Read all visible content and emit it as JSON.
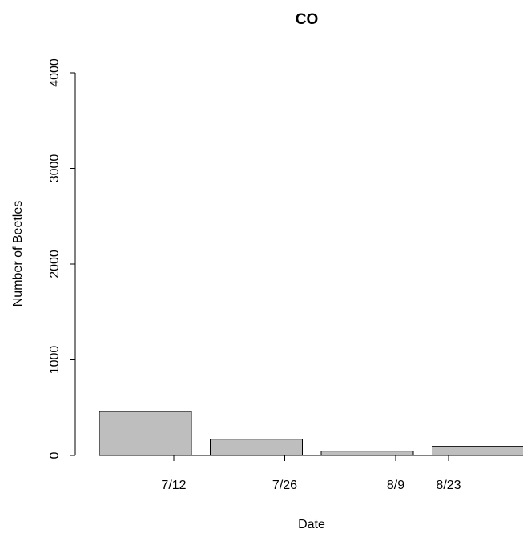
{
  "chart_data": {
    "type": "bar",
    "title": "CO",
    "xlabel": "Date",
    "ylabel": "Number of Beetles",
    "ylim": [
      0,
      4000
    ],
    "yticks": [
      0,
      1000,
      2000,
      3000,
      4000
    ],
    "categories": [
      "7/12",
      "7/26",
      "8/9",
      "8/23"
    ],
    "values": [
      460,
      170,
      45,
      95
    ],
    "bar_color": "#bebebe",
    "grid": false,
    "legend": "none"
  }
}
